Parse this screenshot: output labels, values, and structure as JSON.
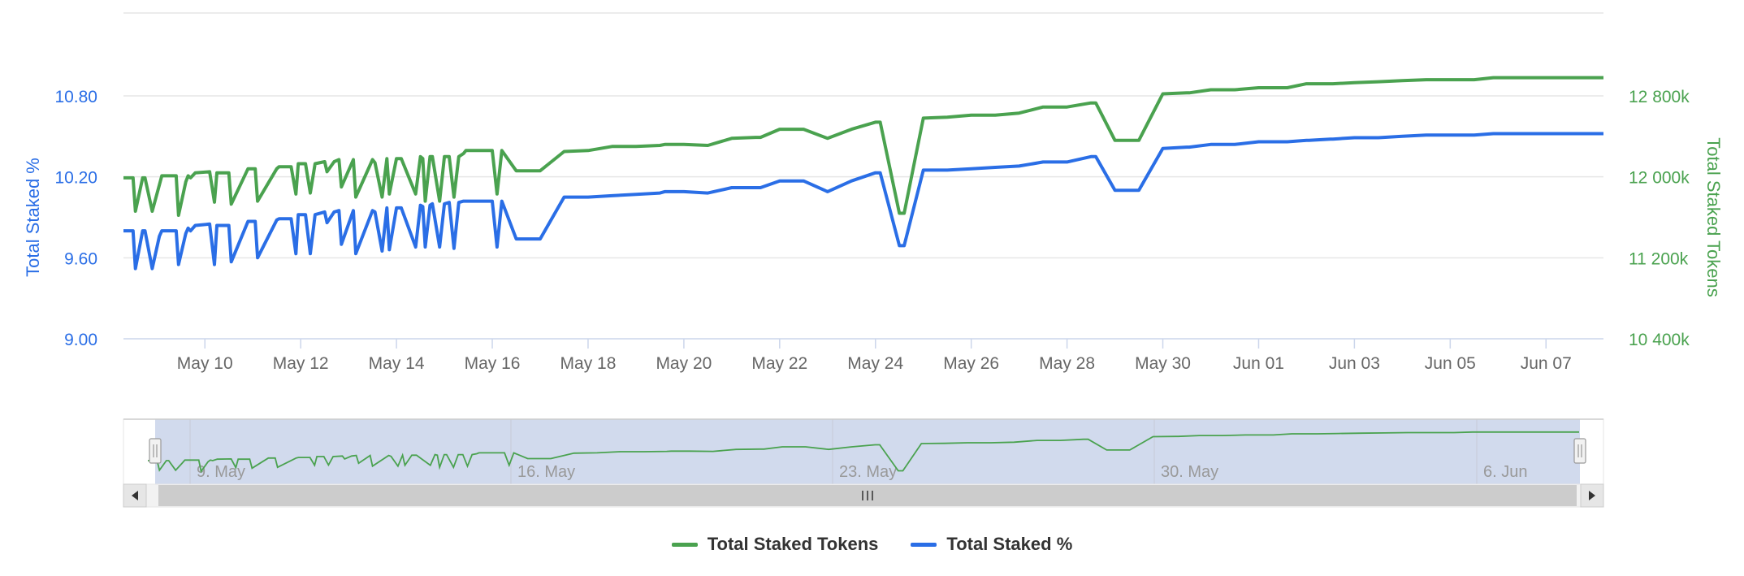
{
  "colors": {
    "tokens": "#4aa24f",
    "percent": "#2a6ee6",
    "grid": "#e6e6e6",
    "navigator_mask": "rgba(102,133,194,0.3)",
    "scrollbar": "#cccccc",
    "axis_text": "#666666"
  },
  "legend": {
    "tokens_label": "Total Staked Tokens",
    "percent_label": "Total Staked %"
  },
  "navigator": {
    "labels": [
      "9. May",
      "16. May",
      "23. May",
      "30. May",
      "6. Jun"
    ],
    "handle_icon": "grip-icon",
    "left_arrow_icon": "arrow-left-icon",
    "right_arrow_icon": "arrow-right-icon"
  },
  "chart_data": {
    "type": "line",
    "y_left": {
      "label": "Total Staked %",
      "ticks": [
        "9.00",
        "9.60",
        "10.20",
        "10.80"
      ],
      "range": [
        9.0,
        11.4
      ]
    },
    "y_right": {
      "label": "Total Staked Tokens",
      "ticks": [
        "10 400k",
        "11 200k",
        "12 000k",
        "12 800k"
      ],
      "range": [
        10400,
        13600
      ]
    },
    "x_axis": {
      "ticks": [
        "May 10",
        "May 12",
        "May 14",
        "May 16",
        "May 18",
        "May 20",
        "May 22",
        "May 24",
        "May 26",
        "May 28",
        "May 30",
        "Jun 01",
        "Jun 03",
        "Jun 05",
        "Jun 07"
      ],
      "range_days": [
        -1.7,
        29.2
      ]
    },
    "series": [
      {
        "name": "Total Staked Tokens",
        "axis": "right",
        "x": [
          -1.7,
          -1.5,
          -1.45,
          -1.3,
          -1.25,
          -1.1,
          -0.95,
          -0.9,
          -0.6,
          -0.55,
          -0.4,
          -0.35,
          -0.3,
          -0.2,
          0.1,
          0.2,
          0.25,
          0.5,
          0.55,
          0.9,
          1.05,
          1.1,
          1.5,
          1.55,
          1.8,
          1.9,
          1.95,
          2.1,
          2.2,
          2.3,
          2.5,
          2.55,
          2.7,
          2.8,
          2.85,
          3.1,
          3.15,
          3.5,
          3.55,
          3.7,
          3.8,
          3.85,
          4.0,
          4.1,
          4.4,
          4.5,
          4.55,
          4.6,
          4.7,
          4.75,
          4.9,
          5.0,
          5.1,
          5.2,
          5.3,
          5.4,
          5.45,
          5.6,
          6.0,
          6.1,
          6.2,
          6.5,
          6.6,
          7.0,
          7.5,
          8.0,
          8.5,
          9.0,
          9.5,
          9.6,
          10.0,
          10.5,
          11.0,
          11.5,
          11.6,
          12.0,
          12.5,
          13.0,
          13.5,
          14.0,
          14.1,
          14.5,
          14.6,
          15.0,
          15.5,
          16.0,
          16.5,
          17.0,
          17.5,
          18.0,
          18.5,
          18.6,
          19.0,
          19.5,
          20.0,
          20.5,
          20.55,
          21.0,
          21.5,
          22.0,
          22.1,
          22.5,
          22.6,
          23.0,
          23.05,
          23.5,
          23.55,
          24.0,
          24.5,
          25.0,
          25.5,
          26.0,
          26.5,
          26.9,
          27.0,
          27.5,
          28.0,
          28.5,
          29.2
        ],
        "values": [
          11990,
          11990,
          11660,
          11990,
          11990,
          11660,
          11920,
          12010,
          12010,
          11620,
          11950,
          12010,
          11990,
          12040,
          12050,
          11750,
          12040,
          12040,
          11730,
          12080,
          12080,
          11760,
          12080,
          12100,
          12100,
          11830,
          12130,
          12130,
          11840,
          12130,
          12150,
          12050,
          12150,
          12170,
          11900,
          12170,
          11800,
          12170,
          12140,
          11800,
          12180,
          11830,
          12180,
          12180,
          11830,
          12200,
          12180,
          11760,
          12200,
          12200,
          11760,
          12200,
          12200,
          11800,
          12200,
          12230,
          12260,
          12260,
          12260,
          11830,
          12260,
          12060,
          12060,
          12060,
          12250,
          12260,
          12300,
          12300,
          12310,
          12320,
          12320,
          12310,
          12380,
          12390,
          12390,
          12470,
          12470,
          12380,
          12470,
          12540,
          12540,
          11640,
          11640,
          12580,
          12590,
          12610,
          12610,
          12630,
          12690,
          12690,
          12730,
          12730,
          12360,
          12360,
          12820,
          12830,
          12830,
          12860,
          12860,
          12880,
          12880,
          12880,
          12880,
          12920,
          12920,
          12920,
          12920,
          12930,
          12940,
          12950,
          12960,
          12960,
          12960,
          12980,
          12980,
          12980,
          12980,
          12980,
          12980
        ]
      },
      {
        "name": "Total Staked %",
        "axis": "left",
        "x": [
          -1.7,
          -1.5,
          -1.45,
          -1.3,
          -1.25,
          -1.1,
          -0.95,
          -0.9,
          -0.6,
          -0.55,
          -0.4,
          -0.35,
          -0.3,
          -0.2,
          0.1,
          0.2,
          0.25,
          0.5,
          0.55,
          0.9,
          1.05,
          1.1,
          1.5,
          1.55,
          1.8,
          1.9,
          1.95,
          2.1,
          2.2,
          2.3,
          2.5,
          2.55,
          2.7,
          2.8,
          2.85,
          3.1,
          3.15,
          3.5,
          3.55,
          3.7,
          3.8,
          3.85,
          4.0,
          4.1,
          4.4,
          4.5,
          4.55,
          4.6,
          4.7,
          4.75,
          4.9,
          5.0,
          5.1,
          5.2,
          5.3,
          5.4,
          5.45,
          5.6,
          6.0,
          6.1,
          6.2,
          6.5,
          6.6,
          7.0,
          7.5,
          8.0,
          8.5,
          9.0,
          9.5,
          9.6,
          10.0,
          10.5,
          11.0,
          11.5,
          11.6,
          12.0,
          12.5,
          13.0,
          13.5,
          14.0,
          14.1,
          14.5,
          14.6,
          15.0,
          15.5,
          16.0,
          16.5,
          17.0,
          17.5,
          18.0,
          18.5,
          18.6,
          19.0,
          19.5,
          20.0,
          20.5,
          20.55,
          21.0,
          21.5,
          22.0,
          22.1,
          22.5,
          22.6,
          23.0,
          23.05,
          23.5,
          23.55,
          24.0,
          24.5,
          25.0,
          25.5,
          26.0,
          26.5,
          26.9,
          27.0,
          27.5,
          28.0,
          28.5,
          29.2
        ],
        "values": [
          9.8,
          9.8,
          9.52,
          9.8,
          9.8,
          9.52,
          9.76,
          9.8,
          9.8,
          9.55,
          9.78,
          9.82,
          9.8,
          9.84,
          9.85,
          9.55,
          9.84,
          9.84,
          9.57,
          9.87,
          9.87,
          9.6,
          9.88,
          9.89,
          9.89,
          9.63,
          9.92,
          9.92,
          9.63,
          9.92,
          9.94,
          9.86,
          9.94,
          9.95,
          9.7,
          9.95,
          9.63,
          9.95,
          9.94,
          9.65,
          9.97,
          9.66,
          9.97,
          9.97,
          9.68,
          9.99,
          9.98,
          9.68,
          9.99,
          10.0,
          9.68,
          10.0,
          10.01,
          9.67,
          10.01,
          10.02,
          10.02,
          10.02,
          10.02,
          9.68,
          10.02,
          9.74,
          9.74,
          9.74,
          10.05,
          10.05,
          10.06,
          10.07,
          10.08,
          10.09,
          10.09,
          10.08,
          10.12,
          10.12,
          10.12,
          10.17,
          10.17,
          10.09,
          10.17,
          10.23,
          10.23,
          9.69,
          9.69,
          10.25,
          10.25,
          10.26,
          10.27,
          10.28,
          10.31,
          10.31,
          10.35,
          10.35,
          10.1,
          10.1,
          10.41,
          10.42,
          10.42,
          10.44,
          10.44,
          10.46,
          10.46,
          10.46,
          10.46,
          10.47,
          10.47,
          10.48,
          10.48,
          10.49,
          10.49,
          10.5,
          10.51,
          10.51,
          10.51,
          10.52,
          10.52,
          10.52,
          10.52,
          10.52,
          10.52
        ]
      }
    ]
  }
}
